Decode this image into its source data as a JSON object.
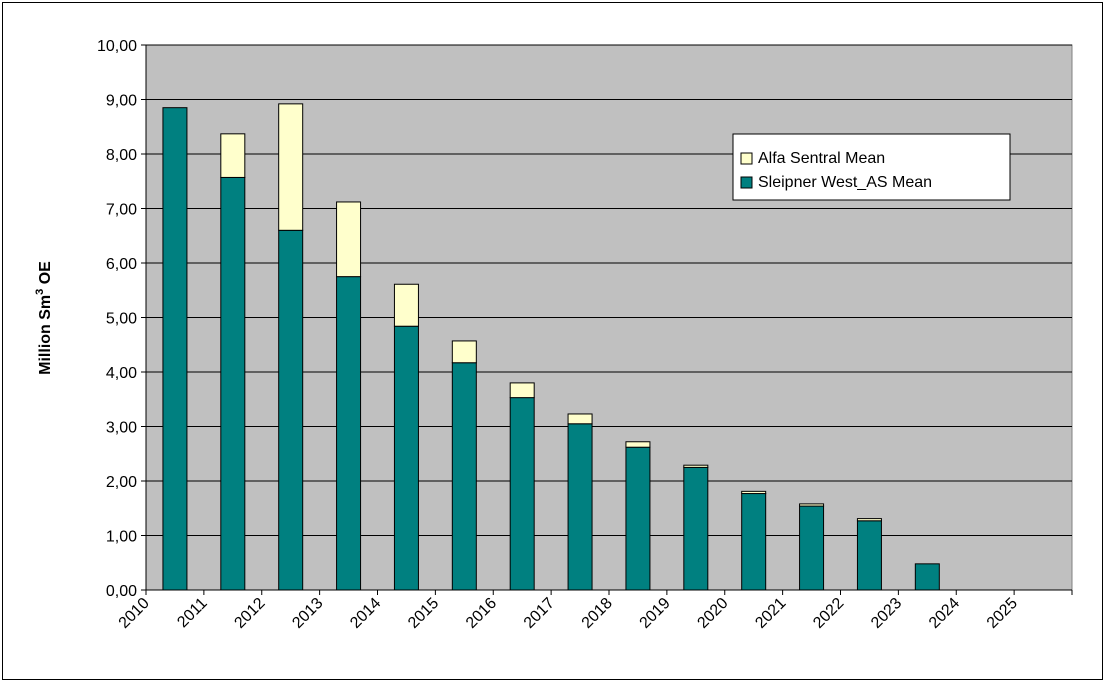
{
  "chart_data": {
    "type": "bar",
    "stacked": true,
    "title": "",
    "xlabel": "",
    "ylabel": {
      "main": "Million Sm",
      "sup": "3",
      "tail": " OE"
    },
    "ylim": [
      0,
      10
    ],
    "yticks": [
      "0,00",
      "1,00",
      "2,00",
      "3,00",
      "4,00",
      "5,00",
      "6,00",
      "7,00",
      "8,00",
      "9,00",
      "10,00"
    ],
    "categories": [
      "2010",
      "2011",
      "2012",
      "2013",
      "2014",
      "2015",
      "2016",
      "2017",
      "2018",
      "2019",
      "2020",
      "2021",
      "2022",
      "2023",
      "2024",
      "2025"
    ],
    "series": [
      {
        "name": "Sleipner West_AS Mean",
        "color": "#008080",
        "values": [
          8.85,
          7.57,
          6.6,
          5.75,
          4.84,
          4.17,
          3.53,
          3.05,
          2.62,
          2.25,
          1.77,
          1.54,
          1.27,
          0.48,
          0,
          0
        ]
      },
      {
        "name": "Alfa Sentral Mean",
        "color": "#FFFFCC",
        "values": [
          0,
          0.8,
          2.32,
          1.37,
          0.77,
          0.4,
          0.27,
          0.18,
          0.1,
          0.04,
          0.04,
          0.04,
          0.04,
          0,
          0,
          0
        ]
      }
    ],
    "legend": {
      "position": "right",
      "order": [
        1,
        0
      ]
    },
    "grid": true,
    "plot_background": "#C0C0C0"
  }
}
